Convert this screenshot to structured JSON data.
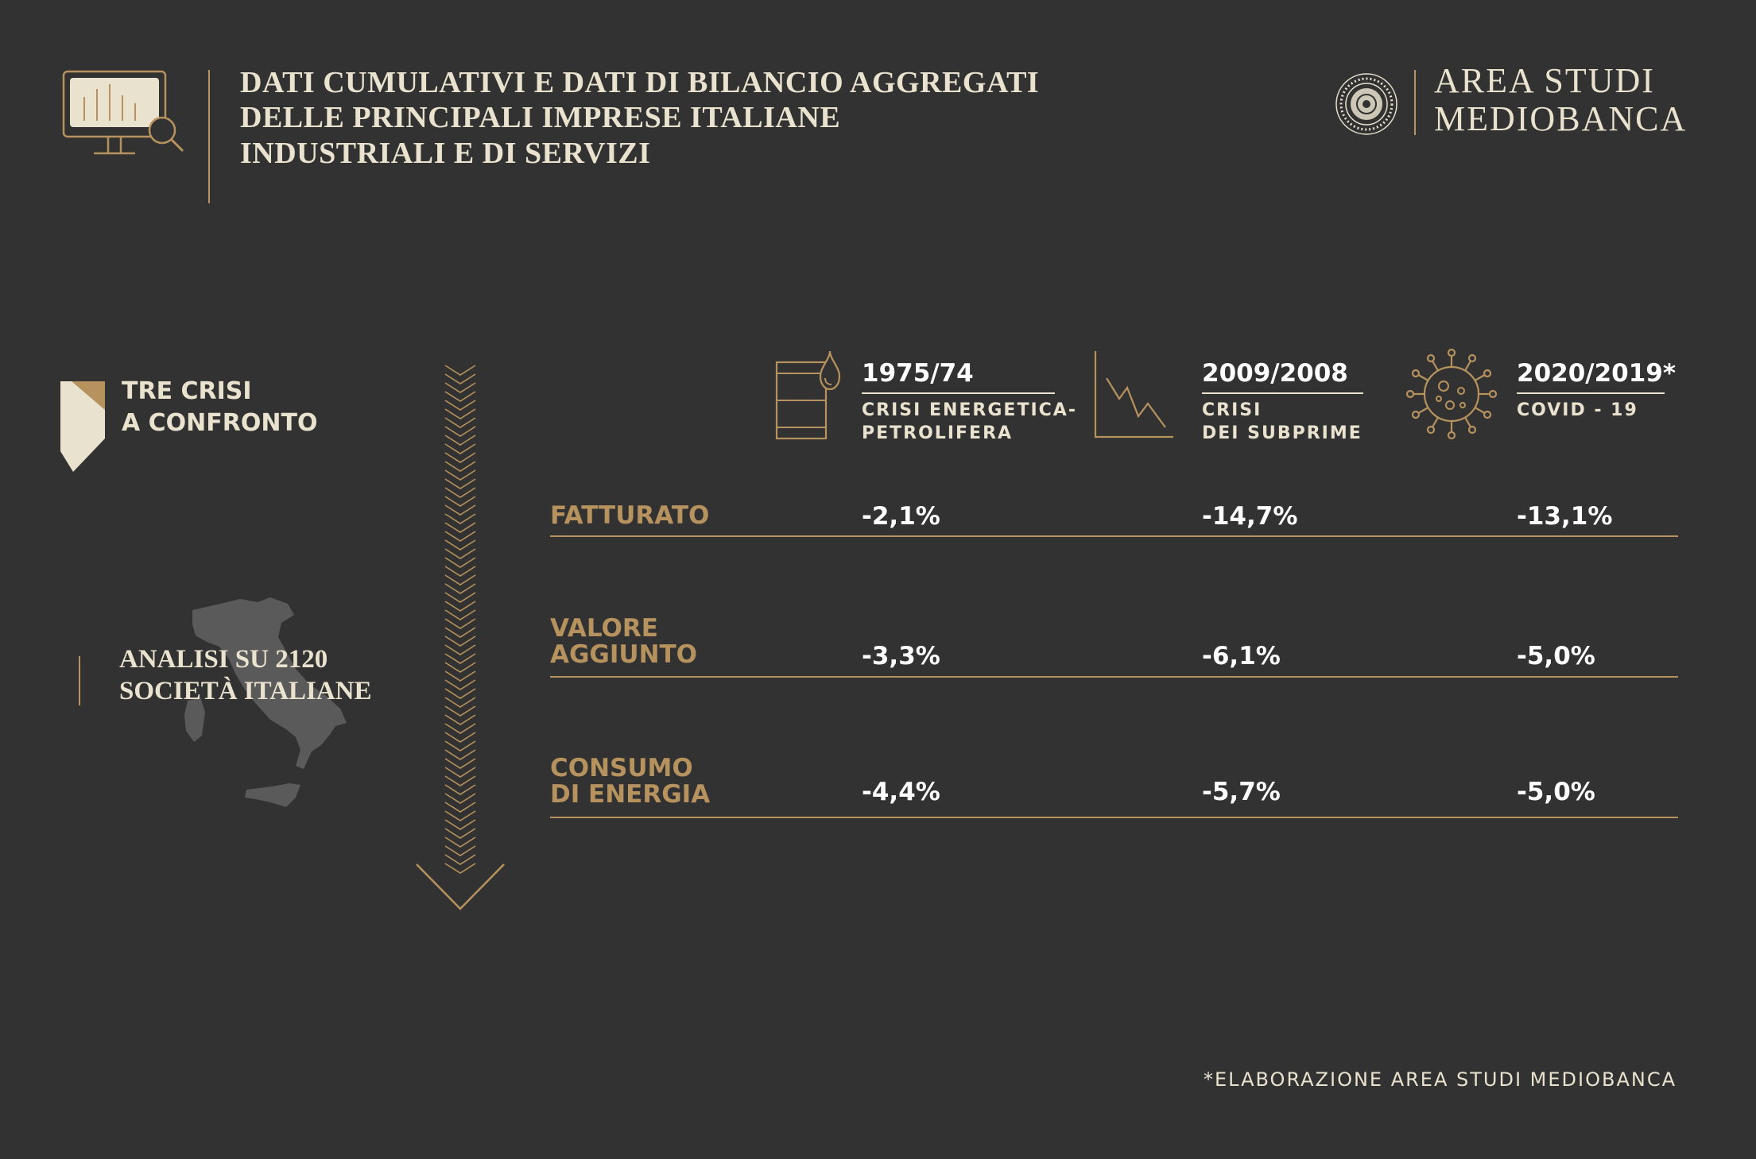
{
  "header": {
    "title_lines": [
      "DATI CUMULATIVI E DATI DI BILANCIO AGGREGATI",
      "DELLE PRINCIPALI IMPRESE ITALIANE",
      "INDUSTRIALI E DI SERVIZI"
    ],
    "brand_lines": [
      "AREA STUDI",
      "MEDIOBANCA"
    ],
    "seal_text": "MEDIOBANCA · BANCA DI CREDITO FINANZIARIO"
  },
  "side": {
    "title_lines": [
      "TRE CRISI",
      "A CONFRONTO"
    ],
    "analysis_lines": [
      "ANALISI SU 2120",
      "SOCIETÀ ITALIANE"
    ]
  },
  "columns": [
    {
      "period": "1975/74",
      "desc_lines": [
        "CRISI ENERGETICA-",
        "PETROLIFERA"
      ],
      "icon": "oil-barrel-icon"
    },
    {
      "period": "2009/2008",
      "desc_lines": [
        "CRISI",
        "DEI SUBPRIME"
      ],
      "icon": "declining-chart-icon"
    },
    {
      "period": "2020/2019*",
      "desc_lines": [
        "COVID - 19"
      ],
      "icon": "virus-icon"
    }
  ],
  "rows": [
    {
      "label_lines": [
        "FATTURATO"
      ],
      "values": [
        "-2,1%",
        "-14,7%",
        "-13,1%"
      ]
    },
    {
      "label_lines": [
        "VALORE",
        "AGGIUNTO"
      ],
      "values": [
        "-3,3%",
        "-6,1%",
        "-5,0%"
      ]
    },
    {
      "label_lines": [
        "CONSUMO",
        "DI ENERGIA"
      ],
      "values": [
        "-4,4%",
        "-5,7%",
        "-5,0%"
      ]
    }
  ],
  "footnote": "*ELABORAZIONE AREA STUDI MEDIOBANCA",
  "colors": {
    "background": "#323232",
    "gold": "#b6925e",
    "cream": "#e9e2cf",
    "value": "#ffffff"
  }
}
